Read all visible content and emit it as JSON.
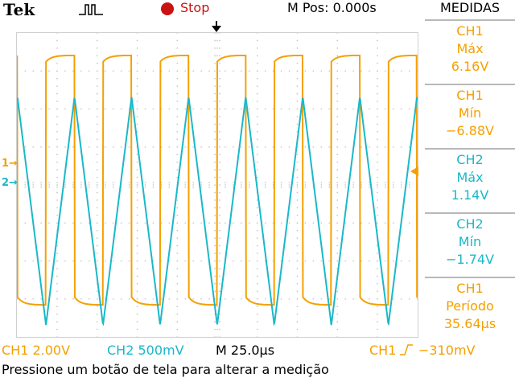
{
  "header": {
    "brand": "Tek",
    "trigger_icon": "pulse-trigger-icon",
    "run_state": "Stop",
    "run_state_color": "#cc1111",
    "position": "M Pos: 0.000s"
  },
  "measure_menu": {
    "title": "MEDIDAS",
    "items": [
      {
        "channel": "CH1",
        "label": "Máx",
        "value": "6.16V",
        "color": "#f5a000"
      },
      {
        "channel": "CH1",
        "label": "Mín",
        "value": "−6.88V",
        "color": "#f5a000"
      },
      {
        "channel": "CH2",
        "label": "Máx",
        "value": "1.14V",
        "color": "#1ab8c8"
      },
      {
        "channel": "CH2",
        "label": "Mín",
        "value": "−1.74V",
        "color": "#1ab8c8"
      },
      {
        "channel": "CH1",
        "label": "Período",
        "value": "35.64µs",
        "color": "#f5a000"
      }
    ]
  },
  "channel_markers": {
    "ch1": "1",
    "ch2": "2"
  },
  "bottom_bar": {
    "ch1_scale": "CH1  2.00V",
    "ch2_scale": "CH2  500mV",
    "timebase": "M 25.0µs",
    "trigger_source": "CH1",
    "trigger_level": "−310mV"
  },
  "status_message": "Pressione um botão de tela para alterar a medição",
  "colors": {
    "ch1": "#f5a000",
    "ch2": "#1ab8c8",
    "grid": "#c8c8c8"
  }
}
